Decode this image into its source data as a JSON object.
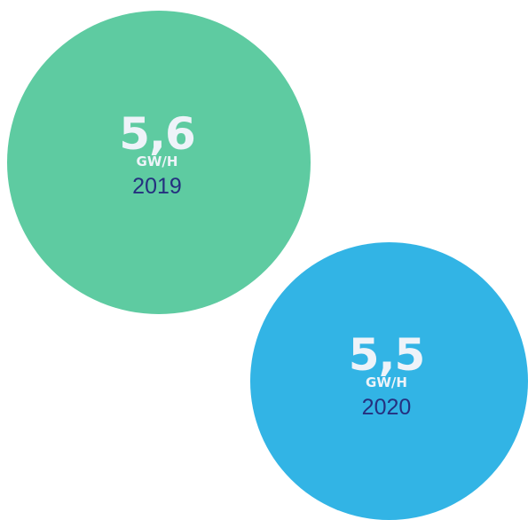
{
  "chart_data": {
    "type": "bubble",
    "categories": [
      "2019",
      "2020"
    ],
    "values": [
      5.6,
      5.5
    ],
    "unit": "GW/H",
    "items": [
      {
        "value_label": "5,6",
        "unit_label": "GW/H",
        "year_label": "2019",
        "color": "#5ecba1"
      },
      {
        "value_label": "5,5",
        "unit_label": "GW/H",
        "year_label": "2020",
        "color": "#32b4e5"
      }
    ]
  },
  "colors": {
    "value_text": "#eef3f9",
    "year_text": "#25307f"
  }
}
